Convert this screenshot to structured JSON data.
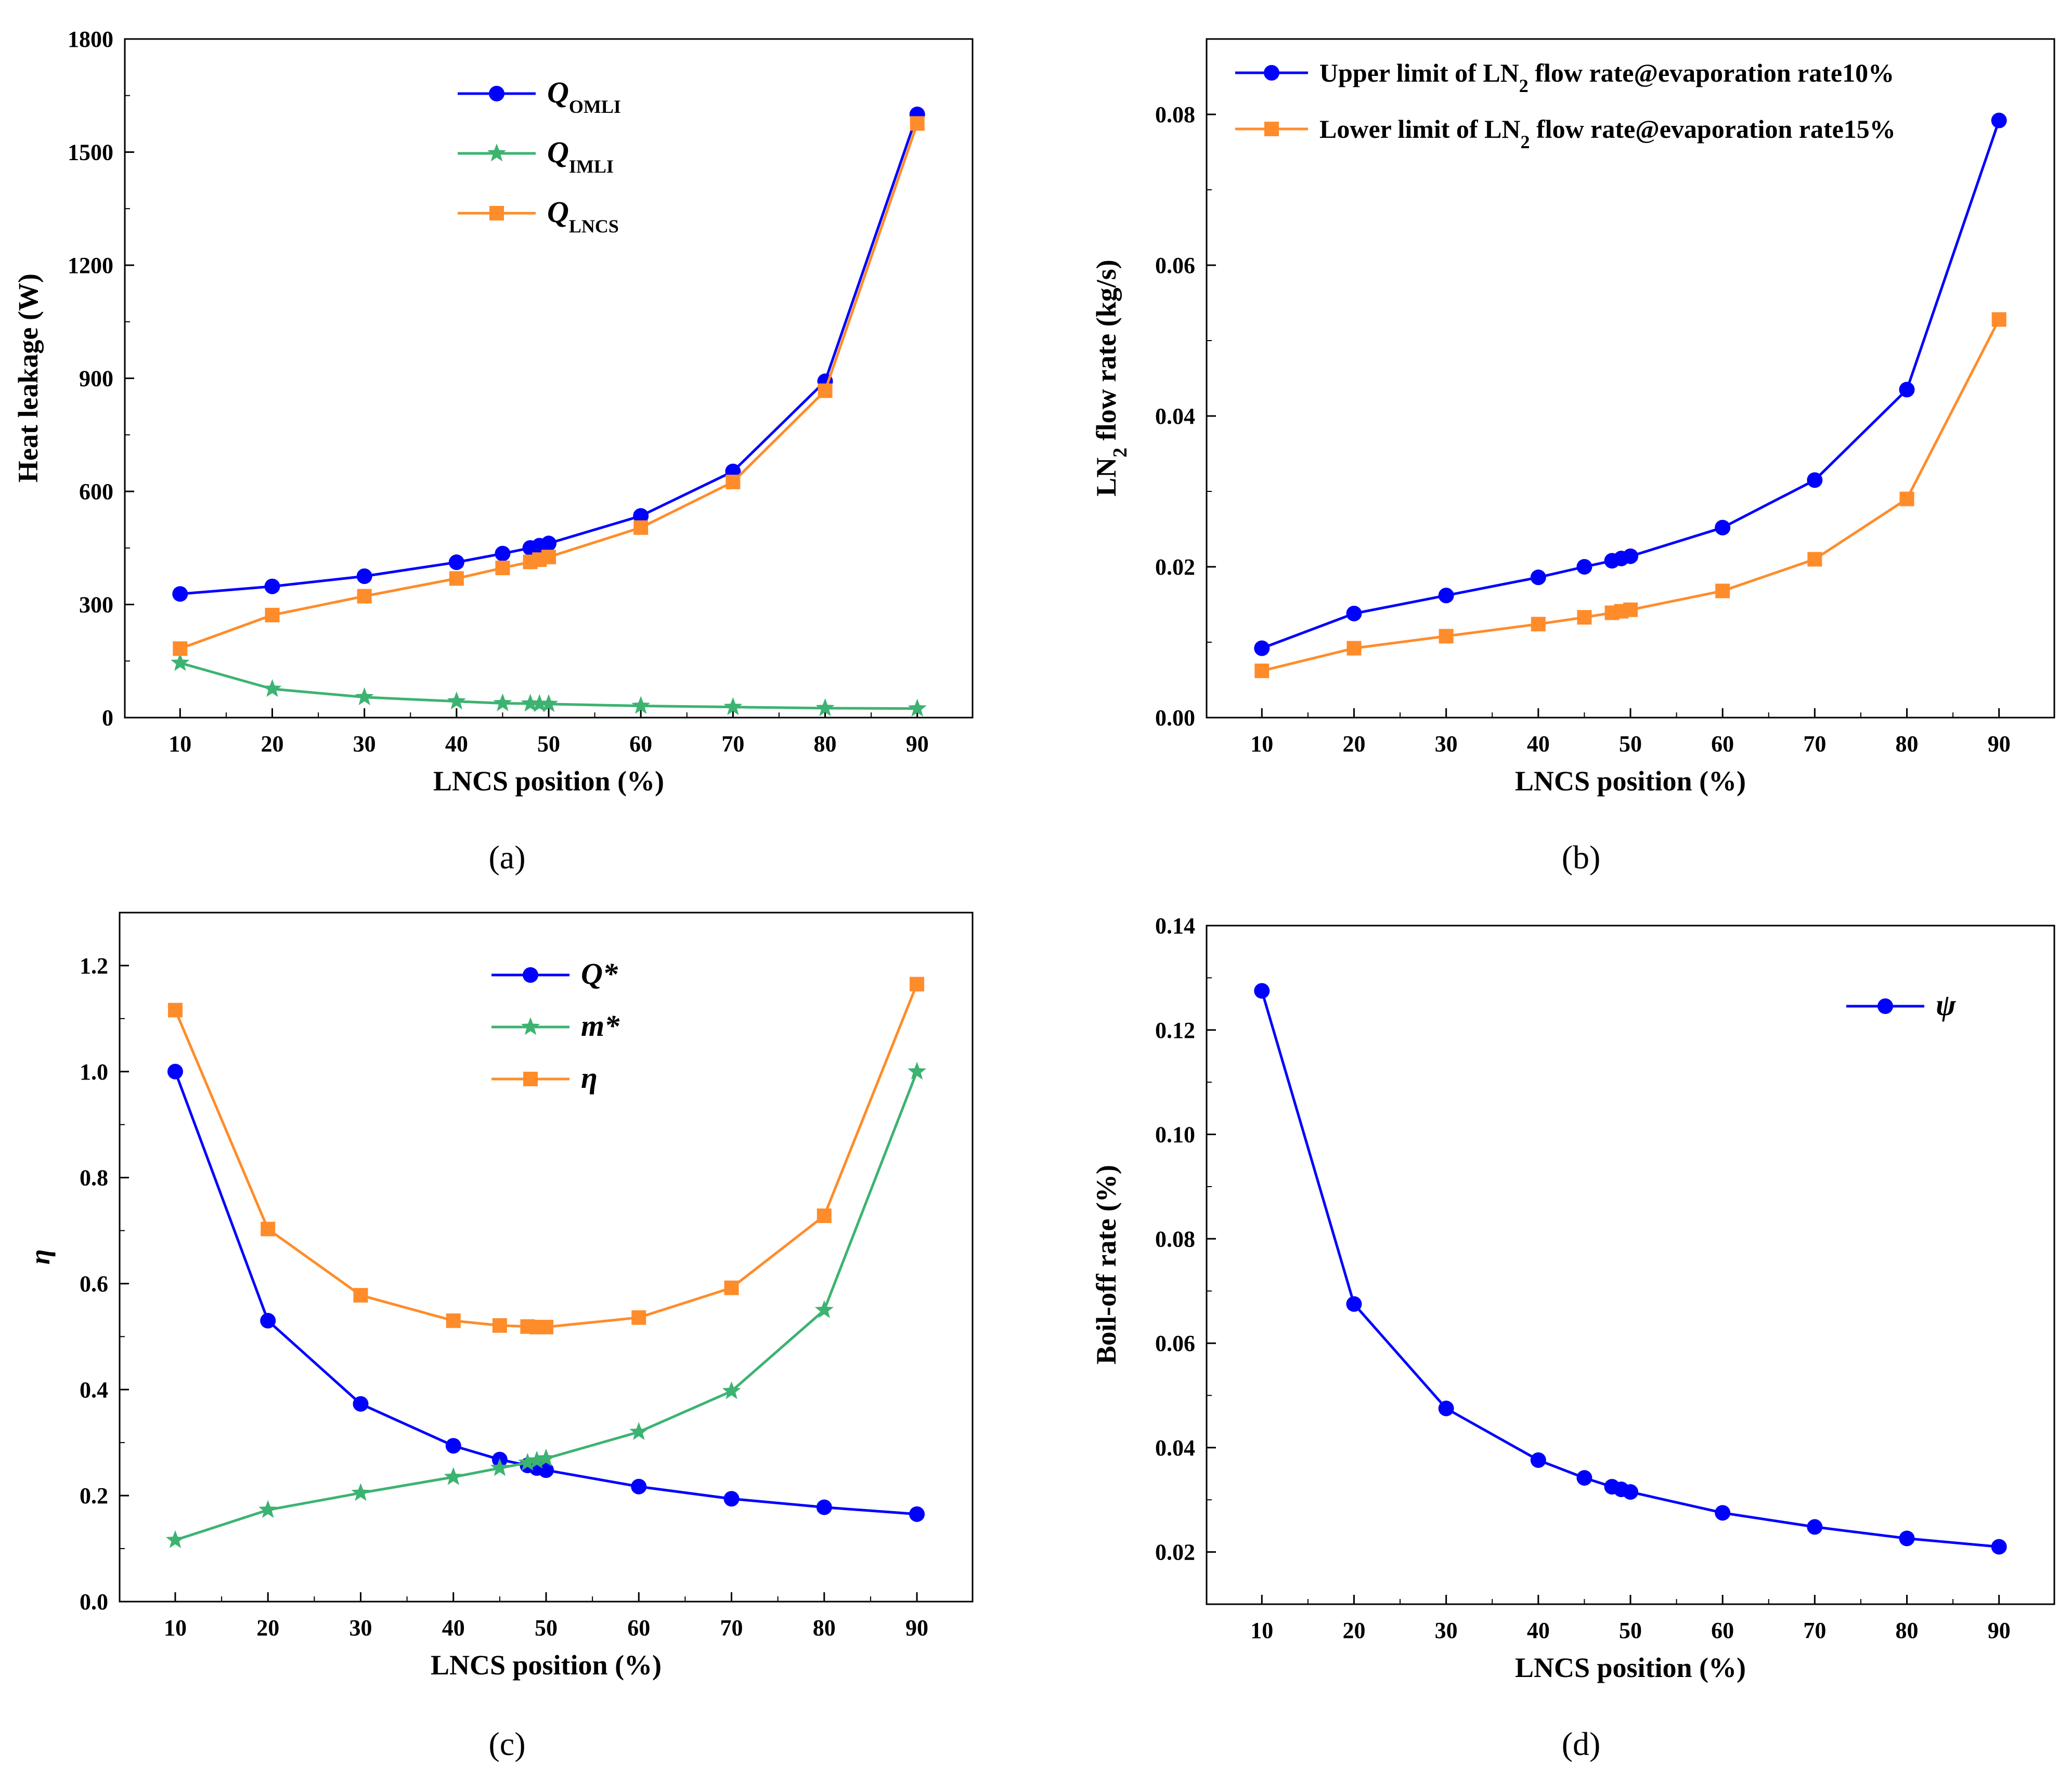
{
  "chart_data": [
    {
      "type": "line",
      "panel_label": "(a)",
      "xlabel": "LNCS position (%)",
      "ylabel": "Heat leakage (W)",
      "xlim": [
        4,
        96
      ],
      "ylim": [
        0,
        1800
      ],
      "xticks": [
        10,
        20,
        30,
        40,
        50,
        60,
        70,
        80,
        90
      ],
      "yticks": [
        0,
        300,
        600,
        900,
        1200,
        1500,
        1800
      ],
      "legend_position": "upper-center",
      "x": [
        10,
        20,
        30,
        40,
        45,
        48,
        49,
        50,
        60,
        70,
        80,
        90
      ],
      "series": [
        {
          "name": "Q",
          "sub": "OMLI",
          "color": "#0000ff",
          "marker": "circle",
          "values": [
            328,
            348,
            375,
            412,
            435,
            450,
            456,
            462,
            535,
            653,
            892,
            1600
          ]
        },
        {
          "name": "Q",
          "sub": "IMLI",
          "color": "#3cb371",
          "marker": "star",
          "values": [
            145,
            76,
            54,
            43,
            38,
            37,
            36,
            36,
            31,
            28,
            25,
            24
          ]
        },
        {
          "name": "Q",
          "sub": "LNCS",
          "color": "#ff8c2a",
          "marker": "square",
          "values": [
            183,
            272,
            322,
            369,
            397,
            413,
            419,
            426,
            504,
            625,
            867,
            1576
          ]
        }
      ]
    },
    {
      "type": "line",
      "panel_label": "(b)",
      "xlabel": "LNCS position (%)",
      "ylabel": "LN",
      "ylabel_sub": "2",
      "ylabel_rest": " flow rate (kg/s)",
      "xlim": [
        4,
        96
      ],
      "ylim": [
        0,
        0.09
      ],
      "xticks": [
        10,
        20,
        30,
        40,
        50,
        60,
        70,
        80,
        90
      ],
      "yticks": [
        "0.00",
        "0.02",
        "0.04",
        "0.06",
        "0.08"
      ],
      "legend_position": "top-left",
      "x": [
        10,
        20,
        30,
        40,
        45,
        48,
        49,
        50,
        60,
        70,
        80,
        90
      ],
      "series": [
        {
          "name": "Upper limit of LN",
          "sub": "2",
          "suffix": " flow rate@evaporation rate10%",
          "color": "#0000ff",
          "marker": "circle",
          "values": [
            0.0092,
            0.0138,
            0.0162,
            0.0186,
            0.02,
            0.0208,
            0.0211,
            0.0214,
            0.0252,
            0.0315,
            0.0435,
            0.0792
          ]
        },
        {
          "name": "Lower limit of LN",
          "sub": "2",
          "suffix": " flow rate@evaporation rate15%",
          "color": "#ff8c2a",
          "marker": "square",
          "values": [
            0.0062,
            0.0092,
            0.0108,
            0.0124,
            0.0133,
            0.0139,
            0.0141,
            0.0143,
            0.0168,
            0.021,
            0.029,
            0.0528
          ]
        }
      ]
    },
    {
      "type": "line",
      "panel_label": "(c)",
      "xlabel": "LNCS position (%)",
      "ylabel": "η",
      "xlim": [
        4,
        96
      ],
      "ylim": [
        0,
        1.3
      ],
      "xticks": [
        10,
        20,
        30,
        40,
        50,
        60,
        70,
        80,
        90
      ],
      "yticks": [
        "0.0",
        "0.2",
        "0.4",
        "0.6",
        "0.8",
        "1.0",
        "1.2"
      ],
      "legend_position": "upper-center",
      "x": [
        10,
        20,
        30,
        40,
        45,
        48,
        49,
        50,
        60,
        70,
        80,
        90
      ],
      "series": [
        {
          "name": "Q*",
          "sub": "",
          "color": "#0000ff",
          "marker": "circle",
          "values": [
            1.0,
            0.53,
            0.373,
            0.294,
            0.268,
            0.257,
            0.252,
            0.248,
            0.217,
            0.194,
            0.178,
            0.165
          ]
        },
        {
          "name": "m*",
          "sub": "",
          "color": "#3cb371",
          "marker": "star",
          "values": [
            0.116,
            0.173,
            0.205,
            0.235,
            0.252,
            0.262,
            0.266,
            0.27,
            0.32,
            0.397,
            0.55,
            1.0
          ]
        },
        {
          "name": "η",
          "sub": "",
          "color": "#ff8c2a",
          "marker": "square",
          "values": [
            1.116,
            0.703,
            0.578,
            0.53,
            0.521,
            0.519,
            0.518,
            0.518,
            0.536,
            0.592,
            0.728,
            1.165
          ]
        }
      ]
    },
    {
      "type": "line",
      "panel_label": "(d)",
      "xlabel": "LNCS position (%)",
      "ylabel": "Boil-off rate (%)",
      "xlim": [
        4,
        96
      ],
      "ylim": [
        0.01,
        0.14
      ],
      "xticks": [
        10,
        20,
        30,
        40,
        50,
        60,
        70,
        80,
        90
      ],
      "yticks": [
        "0.02",
        "0.04",
        "0.06",
        "0.08",
        "0.10",
        "0.12",
        "0.14"
      ],
      "legend_position": "upper-right",
      "x": [
        10,
        20,
        30,
        40,
        45,
        48,
        49,
        50,
        60,
        70,
        80,
        90
      ],
      "series": [
        {
          "name": "ψ",
          "sub": "",
          "color": "#0000ff",
          "marker": "circle",
          "values": [
            0.1275,
            0.0675,
            0.0475,
            0.0376,
            0.0342,
            0.0325,
            0.032,
            0.0315,
            0.0275,
            0.0248,
            0.0226,
            0.021
          ]
        }
      ]
    }
  ]
}
